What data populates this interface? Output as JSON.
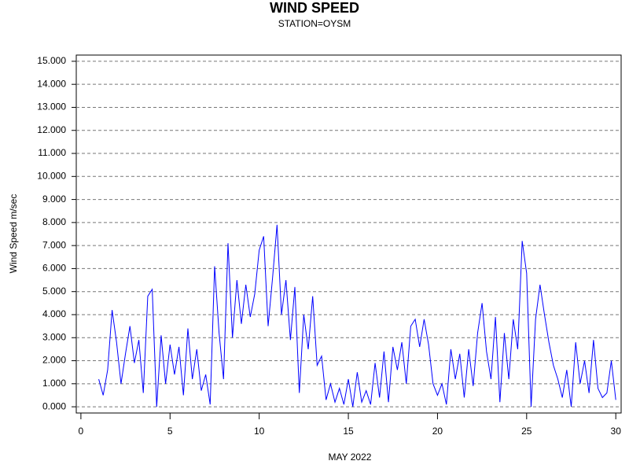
{
  "chart_data": {
    "type": "line",
    "title": "WIND SPEED",
    "subtitle": "STATION=OYSM",
    "x_label": "MAY 2022",
    "y_label": "Wind Speed m/sec",
    "x": [
      1,
      1.25,
      1.5,
      1.75,
      2,
      2.25,
      2.5,
      2.75,
      3,
      3.25,
      3.5,
      3.75,
      4,
      4.25,
      4.5,
      4.75,
      5,
      5.25,
      5.5,
      5.75,
      6,
      6.25,
      6.5,
      6.75,
      7,
      7.25,
      7.5,
      7.75,
      8,
      8.25,
      8.5,
      8.75,
      9,
      9.25,
      9.5,
      9.75,
      10,
      10.25,
      10.5,
      10.75,
      11,
      11.25,
      11.5,
      11.75,
      12,
      12.25,
      12.5,
      12.75,
      13,
      13.25,
      13.5,
      13.75,
      14,
      14.25,
      14.5,
      14.75,
      15,
      15.25,
      15.5,
      15.75,
      16,
      16.25,
      16.5,
      16.75,
      17,
      17.25,
      17.5,
      17.75,
      18,
      18.25,
      18.5,
      18.75,
      19,
      19.25,
      19.5,
      19.75,
      20,
      20.25,
      20.5,
      20.75,
      21,
      21.25,
      21.5,
      21.75,
      22,
      22.25,
      22.5,
      22.75,
      23,
      23.25,
      23.5,
      23.75,
      24,
      24.25,
      24.5,
      24.75,
      25,
      25.25,
      25.5,
      25.75,
      26,
      26.25,
      26.5,
      26.75,
      27,
      27.25,
      27.5,
      27.75,
      28,
      28.25,
      28.5,
      28.75,
      29,
      29.25,
      29.5,
      29.75,
      30
    ],
    "series": [
      {
        "name": "Wind Speed",
        "color": "#0000ff",
        "values": [
          1.2,
          0.5,
          1.6,
          4.2,
          2.8,
          1.0,
          2.3,
          3.5,
          1.9,
          2.9,
          0.6,
          4.8,
          5.1,
          0.0,
          3.1,
          1.0,
          2.7,
          1.4,
          2.6,
          0.5,
          3.4,
          1.2,
          2.5,
          0.7,
          1.4,
          0.1,
          6.1,
          3.2,
          1.2,
          7.1,
          3.0,
          5.5,
          3.6,
          5.3,
          3.9,
          4.9,
          6.8,
          7.4,
          3.5,
          5.6,
          7.9,
          4.0,
          5.5,
          2.9,
          5.2,
          0.6,
          4.0,
          2.5,
          4.8,
          1.8,
          2.2,
          0.3,
          1.0,
          0.2,
          0.8,
          0.1,
          1.2,
          0.0,
          1.5,
          0.2,
          0.7,
          0.1,
          1.9,
          0.4,
          2.4,
          0.2,
          2.6,
          1.6,
          2.8,
          1.0,
          3.5,
          3.8,
          2.6,
          3.8,
          2.7,
          1.0,
          0.5,
          1.0,
          0.1,
          2.5,
          1.2,
          2.3,
          0.4,
          2.5,
          0.9,
          3.2,
          4.5,
          2.4,
          1.2,
          3.9,
          0.2,
          3.2,
          1.2,
          3.8,
          2.5,
          7.2,
          5.8,
          0.0,
          3.8,
          5.3,
          4.0,
          2.8,
          1.8,
          1.2,
          0.4,
          1.6,
          0.0,
          2.8,
          1.0,
          2.0,
          0.6,
          2.9,
          0.8,
          0.4,
          0.6,
          2.0,
          0.3
        ]
      }
    ],
    "xlim": [
      -0.26,
      30.3
    ],
    "ylim": [
      -0.27,
      15.27
    ],
    "xticks": [
      0,
      5,
      10,
      15,
      20,
      25,
      30
    ],
    "yticks": [
      {
        "value": 0,
        "label": "0.000"
      },
      {
        "value": 1,
        "label": "1.000"
      },
      {
        "value": 2,
        "label": "2.000"
      },
      {
        "value": 3,
        "label": "3.000"
      },
      {
        "value": 4,
        "label": "4.000"
      },
      {
        "value": 5,
        "label": "5.000"
      },
      {
        "value": 6,
        "label": "6.000"
      },
      {
        "value": 7,
        "label": "7.000"
      },
      {
        "value": 8,
        "label": "8.000"
      },
      {
        "value": 9,
        "label": "9.000"
      },
      {
        "value": 10,
        "label": "10.000"
      },
      {
        "value": 11,
        "label": "11.000"
      },
      {
        "value": 12,
        "label": "12.000"
      },
      {
        "value": 13,
        "label": "13.000"
      },
      {
        "value": 14,
        "label": "14.000"
      },
      {
        "value": 15,
        "label": "15.000"
      }
    ],
    "grid": true
  }
}
